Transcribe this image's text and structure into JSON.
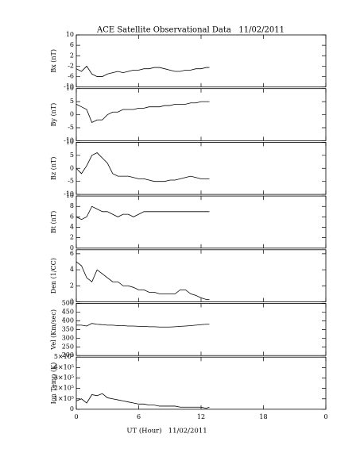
{
  "title": "ACE Satellite Observational Data   11/02/2011",
  "xlabel": "UT (Hour)   11/02/2011",
  "xlim": [
    0,
    24
  ],
  "xticks": [
    0,
    6,
    12,
    18,
    {
      "value": 24,
      "label": "0"
    }
  ],
  "chart_data": [
    {
      "type": "line",
      "ylabel": "Bx (nT)",
      "ylim": [
        -10,
        10
      ],
      "yticks": [
        10,
        6,
        2,
        -2,
        -6,
        -10
      ],
      "color": "#000000",
      "x": [
        0,
        0.5,
        1,
        1.5,
        2,
        2.5,
        3,
        3.5,
        4,
        4.5,
        5,
        5.5,
        6,
        6.5,
        7,
        7.5,
        8,
        8.5,
        9,
        9.5,
        10,
        10.5,
        11,
        11.5,
        12,
        12.5,
        12.8
      ],
      "values": [
        -3,
        -4,
        -2,
        -5,
        -6,
        -6,
        -5,
        -4.5,
        -4,
        -4.5,
        -4,
        -3.5,
        -3.5,
        -3,
        -3,
        -2.5,
        -2.5,
        -3,
        -3.5,
        -4,
        -4,
        -3.5,
        -3.5,
        -3,
        -3,
        -2.5,
        -2.5
      ]
    },
    {
      "type": "line",
      "ylabel": "By (nT)",
      "ylim": [
        -10,
        10
      ],
      "yticks": [
        10,
        5,
        0,
        -5,
        -10
      ],
      "color": "#000000",
      "x": [
        0,
        0.5,
        1,
        1.5,
        2,
        2.5,
        3,
        3.5,
        4,
        4.5,
        5,
        5.5,
        6,
        6.5,
        7,
        7.5,
        8,
        8.5,
        9,
        9.5,
        10,
        10.5,
        11,
        11.5,
        12,
        12.5,
        12.8
      ],
      "values": [
        4,
        3,
        2,
        -3,
        -2,
        -2,
        0,
        1,
        1,
        2,
        2,
        2,
        2.5,
        2.5,
        3,
        3,
        3,
        3.5,
        3.5,
        4,
        4,
        4,
        4.5,
        4.5,
        5,
        5,
        5
      ]
    },
    {
      "type": "line",
      "ylabel": "Bz (nT)",
      "ylim": [
        -10,
        10
      ],
      "yticks": [
        10,
        5,
        0,
        -5,
        -10
      ],
      "color": "#000000",
      "x": [
        0,
        0.5,
        1,
        1.5,
        2,
        2.5,
        3,
        3.5,
        4,
        4.5,
        5,
        5.5,
        6,
        6.5,
        7,
        7.5,
        8,
        8.5,
        9,
        9.5,
        10,
        10.5,
        11,
        11.5,
        12,
        12.5,
        12.8
      ],
      "values": [
        0,
        -2,
        1,
        5,
        6,
        4,
        2,
        -2,
        -3,
        -3,
        -3,
        -3.5,
        -4,
        -4,
        -4.5,
        -5,
        -5,
        -5,
        -4.5,
        -4.5,
        -4,
        -3.5,
        -3,
        -3.5,
        -4,
        -4,
        -4
      ]
    },
    {
      "type": "line",
      "ylabel": "Bt (nT)",
      "ylim": [
        0,
        10
      ],
      "yticks": [
        10,
        8,
        6,
        4,
        2,
        0
      ],
      "color": "#000000",
      "x": [
        0,
        0.5,
        1,
        1.5,
        2,
        2.5,
        3,
        3.5,
        4,
        4.5,
        5,
        5.5,
        6,
        6.5,
        7,
        7.5,
        8,
        8.5,
        9,
        9.5,
        10,
        10.5,
        11,
        11.5,
        12,
        12.5,
        12.8
      ],
      "values": [
        6,
        5.5,
        6,
        8,
        7.5,
        7,
        7,
        6.5,
        6,
        6.5,
        6.5,
        6,
        6.5,
        7,
        7,
        7,
        7,
        7,
        7,
        7,
        7,
        7,
        7,
        7,
        7,
        7,
        7
      ]
    },
    {
      "type": "line",
      "ylabel": "Den (1/CC)",
      "ylim": [
        0,
        6.5
      ],
      "yticks": [
        6,
        4,
        2,
        0
      ],
      "color": "#000000",
      "x": [
        0,
        0.5,
        1,
        1.5,
        2,
        2.5,
        3,
        3.5,
        4,
        4.5,
        5,
        5.5,
        6,
        6.5,
        7,
        7.5,
        8,
        8.5,
        9,
        9.5,
        10,
        10.5,
        11,
        11.5,
        12,
        12.5,
        12.8
      ],
      "values": [
        5,
        4.5,
        3,
        2.5,
        4,
        3.5,
        3,
        2.5,
        2.5,
        2,
        2,
        1.8,
        1.5,
        1.5,
        1.2,
        1.2,
        1,
        1,
        1,
        1,
        1.5,
        1.5,
        1,
        0.8,
        0.5,
        0.3,
        0.3
      ]
    },
    {
      "type": "line",
      "ylabel": "Vel (Km/sec)",
      "ylim": [
        200,
        500
      ],
      "yticks": [
        500,
        450,
        400,
        350,
        300,
        250,
        200
      ],
      "color": "#000000",
      "x": [
        0,
        0.5,
        1,
        1.5,
        2,
        2.5,
        3,
        3.5,
        4,
        4.5,
        5,
        5.5,
        6,
        6.5,
        7,
        7.5,
        8,
        8.5,
        9,
        9.5,
        10,
        10.5,
        11,
        11.5,
        12,
        12.5,
        12.8
      ],
      "values": [
        375,
        375,
        370,
        385,
        380,
        378,
        375,
        375,
        372,
        372,
        370,
        370,
        368,
        368,
        366,
        366,
        364,
        364,
        364,
        366,
        368,
        370,
        372,
        375,
        378,
        380,
        380
      ]
    },
    {
      "type": "line",
      "ylabel": "Ion Temp (K)",
      "ylim": [
        0,
        500000
      ],
      "yticks": [
        {
          "value": 500000,
          "label": "5×10⁵"
        },
        {
          "value": 400000,
          "label": "4×10⁵"
        },
        {
          "value": 300000,
          "label": "3×10⁵"
        },
        {
          "value": 200000,
          "label": "2×10⁵"
        },
        {
          "value": 100000,
          "label": "1×10⁵"
        },
        0
      ],
      "color": "#000000",
      "x": [
        0,
        0.5,
        1,
        1.5,
        2,
        2.5,
        3,
        3.5,
        4,
        4.5,
        5,
        5.5,
        6,
        6.5,
        7,
        7.5,
        8,
        8.5,
        9,
        9.5,
        10,
        10.5,
        11,
        11.5,
        12,
        12.5,
        12.8
      ],
      "values": [
        80000,
        100000,
        60000,
        140000,
        130000,
        150000,
        110000,
        100000,
        90000,
        80000,
        70000,
        60000,
        50000,
        50000,
        40000,
        40000,
        30000,
        30000,
        30000,
        30000,
        20000,
        20000,
        20000,
        20000,
        20000,
        10000,
        20000
      ]
    }
  ]
}
